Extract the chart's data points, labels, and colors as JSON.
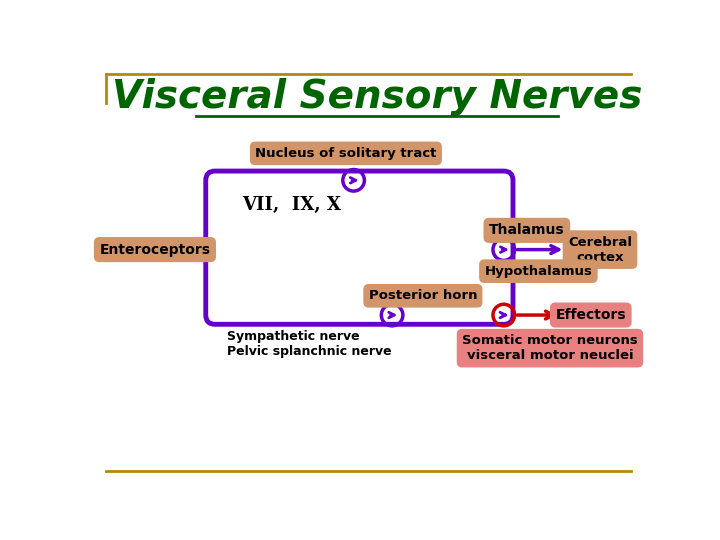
{
  "title": "Visceral Sensory Nerves",
  "title_color": "#006400",
  "title_fontsize": 28,
  "bg_color": "#ffffff",
  "border_color": "#B8860B",
  "box_color": "#6600CC",
  "arrow_color_purple": "#6600CC",
  "arrow_color_red": "#CC0000",
  "label_bg_tan": "#D2956A",
  "label_bg_pink": "#E88080",
  "nucleus_label": "Nucleus of solitary tract",
  "vii_label": "VII,  IX, X",
  "enteroceptors_label": "Enteroceptors",
  "thalamus_label": "Thalamus",
  "cerebral_label": "Cerebral\ncortex",
  "hypothalamus_label": "Hypothalamus",
  "posterior_horn_label": "Posterior horn",
  "sympathetic_label": "Sympathetic nerve\nPelvic splanchnic nerve",
  "somatic_label": "Somatic motor neurons\nvisceral motor neuclei",
  "effectors_label": "Effectors"
}
